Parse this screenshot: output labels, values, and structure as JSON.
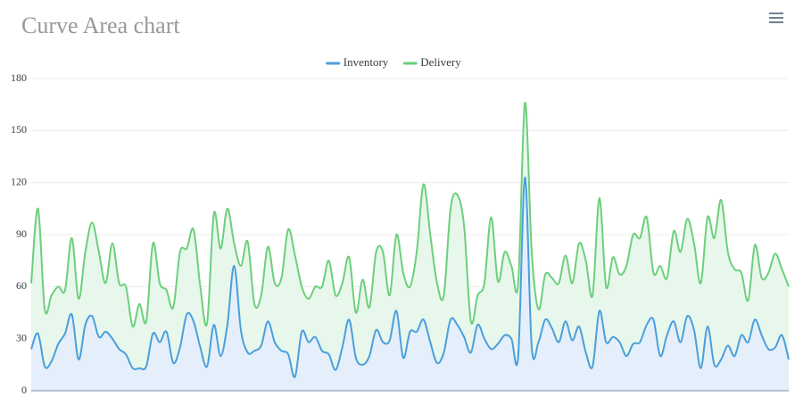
{
  "chart_data": {
    "type": "area",
    "title": "Curve Area chart",
    "ylim": [
      0,
      180
    ],
    "yticks": [
      0,
      30,
      60,
      90,
      120,
      150,
      180
    ],
    "grid": true,
    "curve": "smooth",
    "legend": "top",
    "series": [
      {
        "name": "Inventory",
        "color": "#4a9fdc",
        "fill": "#e4effb",
        "values": [
          24,
          33,
          14,
          17,
          27,
          33,
          44,
          18,
          38,
          43,
          31,
          34,
          30,
          24,
          21,
          13,
          13,
          14,
          33,
          28,
          34,
          16,
          25,
          44,
          40,
          25,
          14,
          38,
          20,
          38,
          72,
          35,
          22,
          23,
          26,
          40,
          28,
          23,
          21,
          8,
          34,
          28,
          31,
          23,
          21,
          12,
          25,
          41,
          19,
          15,
          20,
          35,
          28,
          29,
          46,
          19,
          34,
          34,
          41,
          28,
          16,
          22,
          41,
          38,
          31,
          22,
          38,
          30,
          24,
          27,
          32,
          30,
          20,
          123,
          25,
          28,
          41,
          36,
          28,
          40,
          29,
          37,
          22,
          14,
          46,
          28,
          31,
          28,
          20,
          27,
          28,
          38,
          41,
          20,
          32,
          40,
          28,
          43,
          35,
          13,
          37,
          15,
          18,
          26,
          20,
          32,
          28,
          41,
          32,
          24,
          25,
          32,
          18
        ]
      },
      {
        "name": "Delivery",
        "color": "#6ccf7c",
        "fill": "#e8f7eb",
        "values": [
          62,
          105,
          47,
          55,
          60,
          58,
          88,
          53,
          80,
          97,
          80,
          62,
          85,
          62,
          60,
          37,
          50,
          40,
          85,
          62,
          58,
          48,
          80,
          82,
          93,
          60,
          39,
          102,
          82,
          105,
          85,
          72,
          86,
          50,
          55,
          83,
          62,
          65,
          93,
          78,
          60,
          53,
          60,
          60,
          75,
          55,
          62,
          77,
          45,
          64,
          48,
          80,
          80,
          55,
          90,
          68,
          60,
          80,
          119,
          90,
          62,
          55,
          105,
          113,
          95,
          40,
          55,
          62,
          100,
          63,
          80,
          72,
          62,
          166,
          80,
          47,
          67,
          65,
          62,
          78,
          62,
          85,
          75,
          55,
          111,
          60,
          77,
          67,
          72,
          90,
          88,
          100,
          68,
          72,
          65,
          92,
          80,
          99,
          85,
          62,
          100,
          88,
          110,
          80,
          70,
          68,
          52,
          84,
          65,
          68,
          79,
          70,
          60
        ]
      }
    ]
  }
}
